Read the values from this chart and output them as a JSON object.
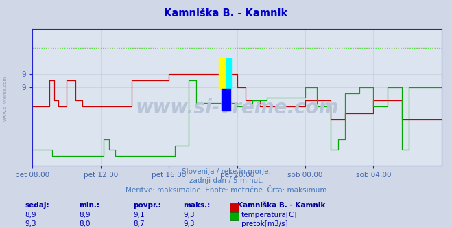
{
  "title": "Kamniška B. - Kamnik",
  "title_color": "#0000cc",
  "bg_color": "#d0d8e8",
  "plot_bg_color": "#dce4f0",
  "grid_color": "#c0c8dc",
  "xlabel_color": "#4466aa",
  "ylabel_color": "#4466aa",
  "axis_color": "#2222cc",
  "subtitle_lines": [
    "Slovenija / reke in morje.",
    "zadnji dan / 5 minut.",
    "Meritve: maksimalne  Enote: metrične  Črta: maksimum"
  ],
  "subtitle_color": "#4477bb",
  "legend_title": "Kamniška B. - Kamnik",
  "legend_title_color": "#000099",
  "legend_items": [
    {
      "label": "temperatura[C]",
      "color": "#cc0000"
    },
    {
      "label": "pretok[m3/s]",
      "color": "#00aa00"
    }
  ],
  "table_headers": [
    "sedaj:",
    "min.:",
    "povpr.:",
    "maks.:"
  ],
  "table_row1": [
    "8,9",
    "8,9",
    "9,1",
    "9,3"
  ],
  "table_row2": [
    "9,3",
    "8,0",
    "8,7",
    "9,3"
  ],
  "table_color": "#0000aa",
  "watermark_text": "www.si-vreme.com",
  "watermark_color": "#b8c4d8",
  "x_tick_labels": [
    "pet 08:00",
    "pet 12:00",
    "pet 16:00",
    "pet 20:00",
    "sob 00:00",
    "sob 04:00"
  ],
  "x_tick_positions": [
    0,
    48,
    96,
    144,
    192,
    240
  ],
  "n_points": 289,
  "ymin": 8.4,
  "ymax": 9.45,
  "yticks": [
    9.0,
    9.1
  ],
  "ytick_labels": [
    "9",
    "9"
  ],
  "temp_max_val": 9.3,
  "flow_max_val": 9.3,
  "temp_color": "#cc0000",
  "flow_color": "#00aa00",
  "max_line_color_temp": "#ff6666",
  "max_line_color_flow": "#44ee44",
  "sidebar_color": "#8899bb"
}
